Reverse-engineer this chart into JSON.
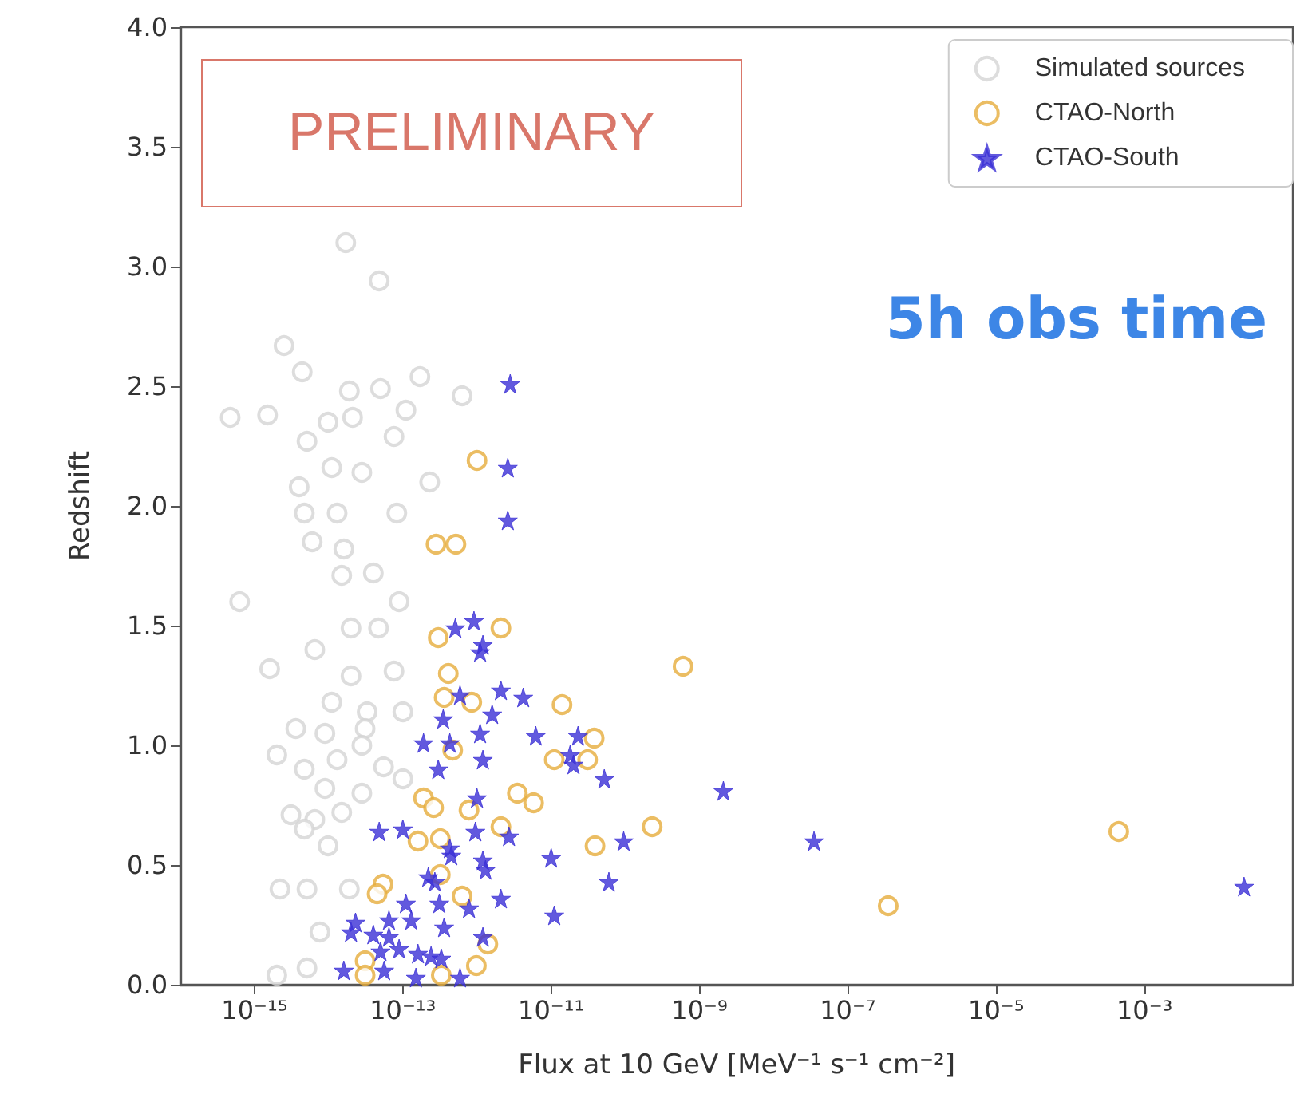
{
  "chart_data": {
    "type": "scatter",
    "xlabel": "Flux at 10 GeV [MeV⁻¹ s⁻¹ cm⁻²]",
    "ylabel": "Redshift",
    "log": "x",
    "grid": false,
    "legend": "top right",
    "xlim": [
      1e-16,
      0.1
    ],
    "xticks": [
      {
        "value": 1e-15,
        "label": "10⁻¹⁵"
      },
      {
        "value": 1e-13,
        "label": "10⁻¹³"
      },
      {
        "value": 1e-11,
        "label": "10⁻¹¹"
      },
      {
        "value": 1e-09,
        "label": "10⁻⁹"
      },
      {
        "value": 1e-07,
        "label": "10⁻⁷"
      },
      {
        "value": 1e-05,
        "label": "10⁻⁵"
      },
      {
        "value": 0.001,
        "label": "10⁻³"
      }
    ],
    "ylim": [
      0,
      4
    ],
    "yticks": [
      {
        "value": 0,
        "label": "0.0"
      },
      {
        "value": 0.5,
        "label": "0.5"
      },
      {
        "value": 1,
        "label": "1.0"
      },
      {
        "value": 1.5,
        "label": "1.5"
      },
      {
        "value": 2,
        "label": "2.0"
      },
      {
        "value": 2.5,
        "label": "2.5"
      },
      {
        "value": 3,
        "label": "3.0"
      },
      {
        "value": 3.5,
        "label": "3.5"
      },
      {
        "value": 4,
        "label": "4.0"
      }
    ],
    "annotations": [
      "PRELIMINARY",
      "5h obs time"
    ],
    "series": [
      {
        "name": "Simulated sources",
        "color": "#d4d4d4",
        "marker": "circle",
        "x": [
          1.7e-14,
          4.8e-14,
          2.5e-15,
          4.4e-15,
          1.7e-13,
          6.3e-13,
          5e-14,
          1.9e-14,
          4.7e-16,
          1.5e-15,
          9.8e-15,
          2.1e-14,
          1.1e-13,
          7.6e-14,
          5.1e-15,
          1.1e-14,
          2.8e-14,
          2.3e-13,
          4e-15,
          4.7e-15,
          1.3e-14,
          8.3e-14,
          6.3e-16,
          6e-15,
          1.6e-14,
          1.5e-14,
          4e-14,
          8.9e-14,
          2e-14,
          4.7e-14,
          6.5e-15,
          1.6e-15,
          2e-14,
          7.6e-14,
          1.1e-14,
          3.3e-14,
          1e-13,
          3.6e-15,
          8.9e-15,
          3.1e-14,
          2e-15,
          4.7e-15,
          1.3e-14,
          5.5e-14,
          1e-13,
          8.9e-15,
          2.8e-14,
          3.1e-15,
          6.5e-15,
          1.5e-14,
          9.8e-15,
          4.7e-15,
          2.2e-15,
          5.1e-15,
          1.9e-14,
          7.6e-15,
          2e-15,
          5.1e-15,
          2.8e-14
        ],
        "values": [
          3.1,
          2.94,
          2.67,
          2.56,
          2.54,
          2.46,
          2.49,
          2.48,
          2.37,
          2.38,
          2.35,
          2.37,
          2.4,
          2.29,
          2.27,
          2.16,
          2.14,
          2.1,
          2.08,
          1.97,
          1.97,
          1.97,
          1.6,
          1.85,
          1.82,
          1.71,
          1.72,
          1.6,
          1.49,
          1.49,
          1.4,
          1.32,
          1.29,
          1.31,
          1.18,
          1.14,
          1.14,
          1.07,
          1.05,
          1.07,
          0.96,
          0.9,
          0.94,
          0.91,
          0.86,
          0.82,
          0.8,
          0.71,
          0.69,
          0.72,
          0.58,
          0.65,
          0.4,
          0.4,
          0.4,
          0.22,
          0.04,
          0.07,
          1.0
        ]
      },
      {
        "name": "CTAO-North",
        "color": "#e6ac3c",
        "marker": "circle",
        "x": [
          1e-12,
          2.8e-13,
          5.2e-13,
          2.1e-12,
          3e-13,
          4.1e-13,
          3.6e-13,
          8.5e-13,
          1.4e-11,
          3.8e-11,
          1.1e-11,
          3.1e-11,
          4.7e-13,
          1.9e-13,
          2.6e-13,
          3.5e-12,
          5.8e-12,
          7.8e-13,
          2.1e-12,
          2.3e-10,
          1.6e-13,
          3.2e-13,
          3.9e-11,
          6e-10,
          5.4e-14,
          4.5e-14,
          6.3e-13,
          1.4e-12,
          9.8e-13,
          3.1e-14,
          3.1e-14,
          3.3e-13,
          3.2e-13,
          3.5e-07,
          0.00045
        ],
        "values": [
          2.19,
          1.84,
          1.84,
          1.49,
          1.45,
          1.3,
          1.2,
          1.18,
          1.17,
          1.03,
          0.94,
          0.94,
          0.98,
          0.78,
          0.74,
          0.8,
          0.76,
          0.73,
          0.66,
          0.66,
          0.6,
          0.61,
          0.58,
          1.33,
          0.42,
          0.38,
          0.37,
          0.17,
          0.08,
          0.1,
          0.04,
          0.04,
          0.46,
          0.33,
          0.64
        ]
      },
      {
        "name": "CTAO-South",
        "color": "#3b2fd6",
        "marker": "star",
        "x": [
          2.8e-12,
          2.6e-12,
          2.6e-12,
          5.1e-13,
          9.1e-13,
          1.2e-12,
          1.1e-12,
          5.9e-13,
          2.1e-12,
          4.2e-12,
          1.6e-12,
          3.5e-13,
          6.2e-12,
          2.3e-11,
          1.1e-12,
          1.9e-13,
          4.3e-13,
          1.2e-12,
          1.8e-11,
          2e-11,
          3e-13,
          5.2e-11,
          1e-12,
          2.1e-09,
          4.8e-14,
          1e-13,
          9.5e-13,
          2.7e-12,
          4.3e-13,
          4.5e-13,
          9.5e-11,
          1e-11,
          1.2e-12,
          1.3e-12,
          2.2e-13,
          2.7e-13,
          6e-11,
          2.1e-12,
          1.1e-13,
          3.1e-13,
          7.8e-13,
          1.1e-11,
          1.3e-13,
          6.5e-14,
          2.3e-14,
          3.6e-13,
          2e-14,
          4e-14,
          6.5e-14,
          1.2e-12,
          8.9e-14,
          5e-14,
          1.6e-13,
          2.4e-13,
          3.3e-13,
          1.6e-14,
          5.6e-14,
          1.5e-13,
          5.9e-13,
          3.5e-08,
          0.022
        ],
        "values": [
          2.51,
          2.16,
          1.94,
          1.49,
          1.52,
          1.42,
          1.39,
          1.21,
          1.23,
          1.2,
          1.13,
          1.11,
          1.04,
          1.04,
          1.05,
          1.01,
          1.01,
          0.94,
          0.96,
          0.92,
          0.9,
          0.86,
          0.78,
          0.81,
          0.64,
          0.65,
          0.64,
          0.62,
          0.57,
          0.54,
          0.6,
          0.53,
          0.52,
          0.48,
          0.45,
          0.43,
          0.43,
          0.36,
          0.34,
          0.34,
          0.32,
          0.29,
          0.27,
          0.27,
          0.26,
          0.24,
          0.22,
          0.21,
          0.2,
          0.2,
          0.15,
          0.14,
          0.13,
          0.12,
          0.11,
          0.06,
          0.06,
          0.03,
          0.03,
          0.6,
          0.41
        ]
      }
    ]
  }
}
